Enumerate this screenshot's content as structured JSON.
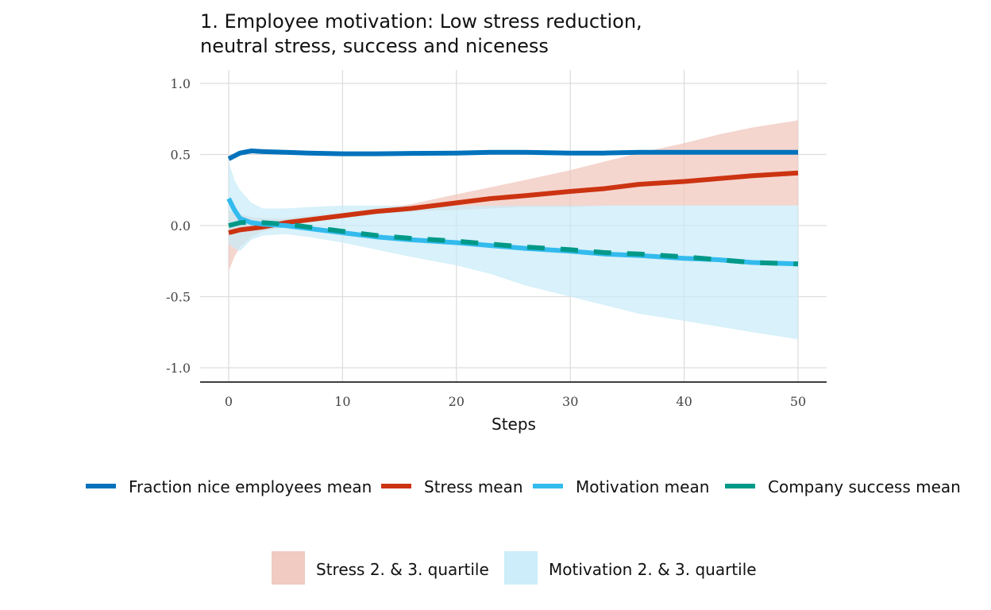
{
  "chart_data": {
    "type": "line",
    "title_lines": [
      "1. Employee motivation: Low stress reduction,",
      "neutral stress, success and niceness"
    ],
    "xlabel": "Steps",
    "ylabel": "",
    "xlim": [
      0,
      50
    ],
    "ylim": [
      -1.0,
      1.0
    ],
    "x_ticks": [
      0,
      10,
      20,
      30,
      40,
      50
    ],
    "y_ticks": [
      -1.0,
      -0.5,
      0.0,
      0.5,
      1.0
    ],
    "y_tick_labels": [
      "-1.0",
      "-0.5",
      "0.0",
      "0.5",
      "1.0"
    ],
    "grid": true,
    "legend_position": "bottom",
    "x": [
      0,
      0.5,
      1,
      2,
      3,
      5,
      7,
      10,
      13,
      16,
      20,
      23,
      26,
      30,
      33,
      36,
      40,
      43,
      46,
      50
    ],
    "bands": [
      {
        "name": "Stress 2. & 3. quartile",
        "color": "#f0c4bb",
        "lower": [
          -0.32,
          -0.22,
          -0.15,
          -0.08,
          -0.04,
          -0.01,
          0.03,
          0.06,
          0.08,
          0.1,
          0.11,
          0.12,
          0.13,
          0.13,
          0.14,
          0.14,
          0.14,
          0.14,
          0.14,
          0.14
        ],
        "upper": [
          0.1,
          0.09,
          0.08,
          0.06,
          0.05,
          0.05,
          0.07,
          0.09,
          0.12,
          0.15,
          0.22,
          0.27,
          0.32,
          0.39,
          0.45,
          0.51,
          0.58,
          0.64,
          0.69,
          0.74
        ]
      },
      {
        "name": "Motivation 2. & 3. quartile",
        "color": "#c7ebf8",
        "lower": [
          -0.13,
          -0.16,
          -0.18,
          -0.1,
          -0.07,
          -0.06,
          -0.08,
          -0.12,
          -0.17,
          -0.22,
          -0.28,
          -0.34,
          -0.42,
          -0.5,
          -0.56,
          -0.62,
          -0.67,
          -0.71,
          -0.75,
          -0.8
        ],
        "upper": [
          0.45,
          0.32,
          0.25,
          0.16,
          0.12,
          0.12,
          0.13,
          0.14,
          0.14,
          0.14,
          0.14,
          0.14,
          0.14,
          0.14,
          0.14,
          0.14,
          0.14,
          0.14,
          0.14,
          0.14
        ]
      }
    ],
    "series": [
      {
        "name": "Fraction nice employees mean",
        "color": "#0072bb",
        "dashed": false,
        "values": [
          0.47,
          0.49,
          0.51,
          0.525,
          0.52,
          0.515,
          0.51,
          0.505,
          0.505,
          0.508,
          0.51,
          0.515,
          0.515,
          0.51,
          0.51,
          0.515,
          0.515,
          0.515,
          0.515,
          0.515
        ]
      },
      {
        "name": "Stress mean",
        "color": "#cc3311",
        "dashed": false,
        "values": [
          -0.05,
          -0.04,
          -0.03,
          -0.02,
          -0.01,
          0.02,
          0.04,
          0.07,
          0.1,
          0.12,
          0.16,
          0.19,
          0.21,
          0.24,
          0.26,
          0.29,
          0.31,
          0.33,
          0.35,
          0.37
        ]
      },
      {
        "name": "Motivation mean",
        "color": "#33bbee",
        "dashed": false,
        "values": [
          0.19,
          0.11,
          0.05,
          0.02,
          0.01,
          0.0,
          -0.02,
          -0.05,
          -0.08,
          -0.1,
          -0.12,
          -0.14,
          -0.16,
          -0.18,
          -0.2,
          -0.21,
          -0.23,
          -0.24,
          -0.26,
          -0.27
        ]
      },
      {
        "name": "Company success mean",
        "color": "#009988",
        "dashed": true,
        "values": [
          0.0,
          0.01,
          0.02,
          0.025,
          0.02,
          0.01,
          -0.01,
          -0.04,
          -0.07,
          -0.09,
          -0.11,
          -0.13,
          -0.15,
          -0.17,
          -0.19,
          -0.2,
          -0.22,
          -0.24,
          -0.26,
          -0.27
        ]
      }
    ]
  }
}
